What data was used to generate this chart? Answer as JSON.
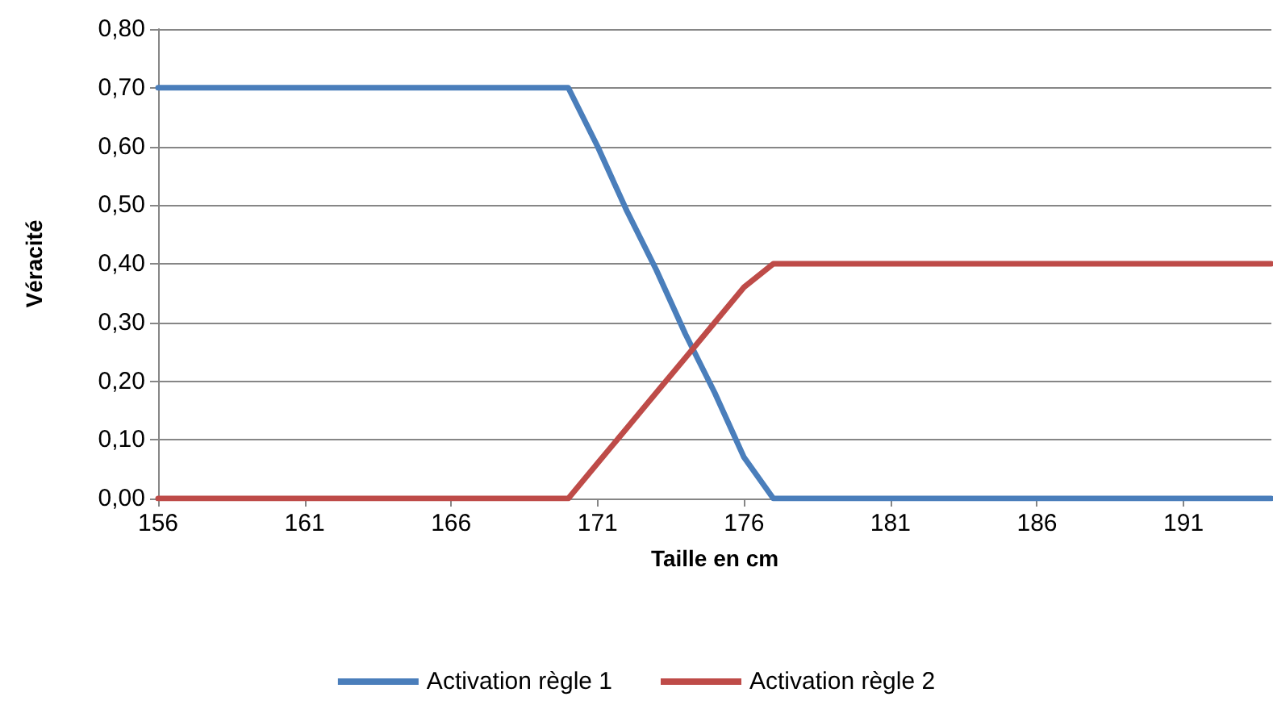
{
  "chart_data": {
    "type": "line",
    "xlabel": "Taille en cm",
    "ylabel": "Véracité",
    "x": [
      156,
      157,
      158,
      159,
      160,
      161,
      162,
      163,
      164,
      165,
      166,
      167,
      168,
      169,
      170,
      171,
      172,
      173,
      174,
      175,
      176,
      177,
      178,
      179,
      180,
      181,
      182,
      183,
      184,
      185,
      186,
      187,
      188,
      189,
      190,
      191,
      192,
      193,
      194
    ],
    "series": [
      {
        "name": "Activation règle 1",
        "color": "#4a7ebb",
        "values": [
          0.7,
          0.7,
          0.7,
          0.7,
          0.7,
          0.7,
          0.7,
          0.7,
          0.7,
          0.7,
          0.7,
          0.7,
          0.7,
          0.7,
          0.7,
          0.6,
          0.49,
          0.39,
          0.28,
          0.18,
          0.07,
          0,
          0,
          0,
          0,
          0,
          0,
          0,
          0,
          0,
          0,
          0,
          0,
          0,
          0,
          0,
          0,
          0,
          0
        ]
      },
      {
        "name": "Activation règle 2",
        "color": "#be4b48",
        "values": [
          0,
          0,
          0,
          0,
          0,
          0,
          0,
          0,
          0,
          0,
          0,
          0,
          0,
          0,
          0,
          0.06,
          0.12,
          0.18,
          0.24,
          0.3,
          0.36,
          0.4,
          0.4,
          0.4,
          0.4,
          0.4,
          0.4,
          0.4,
          0.4,
          0.4,
          0.4,
          0.4,
          0.4,
          0.4,
          0.4,
          0.4,
          0.4,
          0.4,
          0.4
        ]
      }
    ],
    "xlim": [
      156,
      194
    ],
    "xticks": [
      156,
      161,
      166,
      171,
      176,
      181,
      186,
      191
    ],
    "ylim": [
      0,
      0.8
    ],
    "yticks": [
      {
        "value": 0,
        "label": "0,00"
      },
      {
        "value": 0.1,
        "label": "0,10"
      },
      {
        "value": 0.2,
        "label": "0,20"
      },
      {
        "value": 0.3,
        "label": "0,30"
      },
      {
        "value": 0.4,
        "label": "0,40"
      },
      {
        "value": 0.5,
        "label": "0,50"
      },
      {
        "value": 0.6,
        "label": "0,60"
      },
      {
        "value": 0.7,
        "label": "0,70"
      },
      {
        "value": 0.8,
        "label": "0,80"
      }
    ],
    "grid": "y",
    "legend": "bottom",
    "marker": "none",
    "line_style": "solid"
  }
}
